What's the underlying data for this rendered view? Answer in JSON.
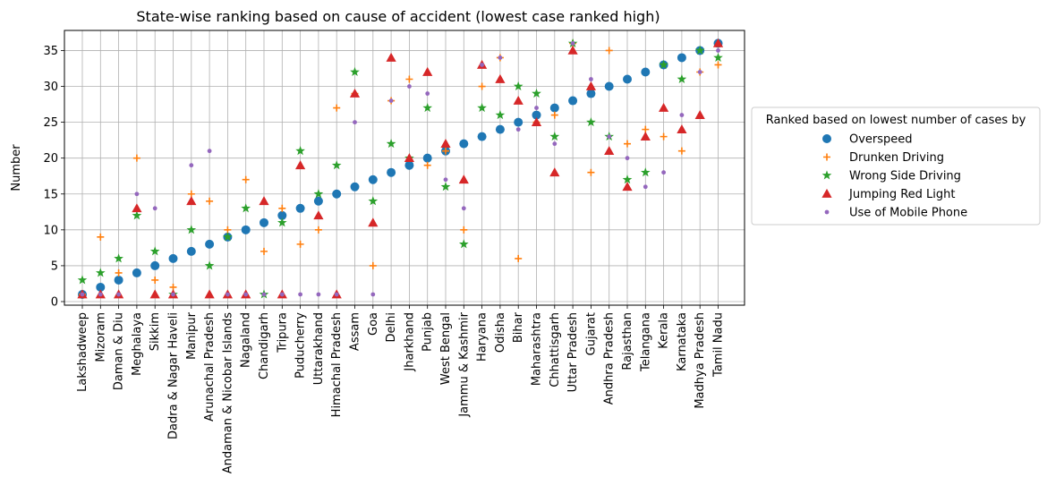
{
  "chart_data": {
    "type": "scatter",
    "title": "State-wise ranking based on cause of accident (lowest case ranked high)",
    "xlabel": "",
    "ylabel": "Number",
    "ylim": [
      -0.5,
      37.8
    ],
    "yticks": [
      0,
      5,
      10,
      15,
      20,
      25,
      30,
      35
    ],
    "grid": true,
    "legend_title": "Ranked based on lowest number of cases by",
    "legend_position": "outside-right",
    "categories": [
      "Lakshadweep",
      "Mizoram",
      "Daman & Diu",
      "Meghalaya",
      "Sikkim",
      "Dadra & Nagar Haveli",
      "Manipur",
      "Arunachal Pradesh",
      "Andaman & Nicobar Islands",
      "Nagaland",
      "Chandigarh",
      "Tripura",
      "Puducherry",
      "Uttarakhand",
      "Himachal Pradesh",
      "Assam",
      "Goa",
      "Delhi",
      "Jharkhand",
      "Punjab",
      "West Bengal",
      "Jammu & Kashmir",
      "Haryana",
      "Odisha",
      "Bihar",
      "Maharashtra",
      "Chhattisgarh",
      "Uttar Pradesh",
      "Gujarat",
      "Andhra Pradesh",
      "Rajasthan",
      "Telangana",
      "Kerala",
      "Karnataka",
      "Madhya Pradesh",
      "Tamil Nadu"
    ],
    "series": [
      {
        "name": "Overspeed",
        "marker": "circle",
        "color": "#1f77b4",
        "values": [
          1,
          2,
          3,
          4,
          5,
          6,
          7,
          8,
          9,
          10,
          11,
          12,
          13,
          14,
          15,
          16,
          17,
          18,
          19,
          20,
          21,
          22,
          23,
          24,
          25,
          26,
          27,
          28,
          29,
          30,
          31,
          32,
          33,
          34,
          35,
          36
        ]
      },
      {
        "name": "Drunken Driving",
        "marker": "plus",
        "color": "#ff7f0e",
        "values": [
          1,
          9,
          4,
          20,
          3,
          2,
          15,
          14,
          10,
          17,
          7,
          13,
          8,
          10,
          27,
          29,
          5,
          28,
          31,
          19,
          21,
          10,
          30,
          34,
          6,
          25,
          26,
          36,
          18,
          35,
          22,
          24,
          23,
          21,
          32,
          33
        ]
      },
      {
        "name": "Wrong Side Driving",
        "marker": "star",
        "color": "#2ca02c",
        "values": [
          3,
          4,
          6,
          12,
          7,
          1,
          10,
          5,
          9,
          13,
          1,
          11,
          21,
          15,
          19,
          32,
          14,
          22,
          20,
          27,
          16,
          8,
          27,
          26,
          30,
          29,
          23,
          36,
          25,
          23,
          17,
          18,
          33,
          31,
          35,
          34
        ]
      },
      {
        "name": "Jumping Red Light",
        "marker": "triangle",
        "color": "#d62728",
        "values": [
          1,
          1,
          1,
          13,
          1,
          1,
          14,
          1,
          1,
          1,
          14,
          1,
          19,
          12,
          1,
          29,
          11,
          34,
          20,
          32,
          22,
          17,
          33,
          31,
          28,
          25,
          18,
          35,
          30,
          21,
          16,
          23,
          27,
          24,
          26,
          36
        ]
      },
      {
        "name": "Use of Mobile Phone",
        "marker": "dot",
        "color": "#9467bd",
        "values": [
          1,
          1,
          1,
          15,
          13,
          1,
          19,
          21,
          1,
          1,
          1,
          1,
          1,
          1,
          1,
          25,
          1,
          28,
          30,
          29,
          17,
          13,
          33,
          34,
          24,
          27,
          22,
          36,
          31,
          23,
          20,
          16,
          18,
          26,
          32,
          35
        ]
      }
    ]
  }
}
